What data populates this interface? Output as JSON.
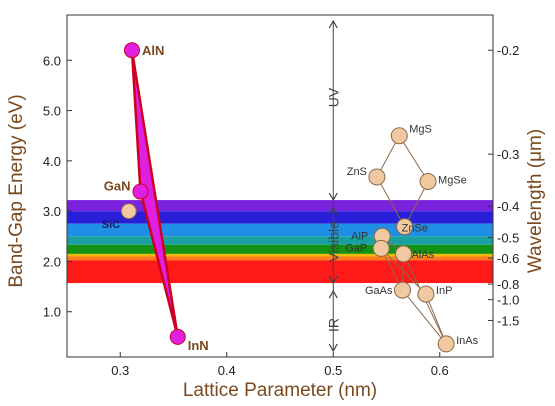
{
  "chart_data": {
    "type": "scatter",
    "title": "",
    "xlabel": "Lattice Parameter  (nm)",
    "ylabel": "Band-Gap Energy (eV)",
    "y2label": "Wavelength (μm)",
    "xlim": [
      0.25,
      0.65
    ],
    "ylim": [
      0.1,
      6.9
    ],
    "x_ticks": [
      0.3,
      0.4,
      0.5,
      0.6
    ],
    "x_tick_labels": [
      "0.3",
      "0.4",
      "0.5",
      "0.6"
    ],
    "y_ticks": [
      1.0,
      2.0,
      3.0,
      4.0,
      5.0,
      6.0
    ],
    "y_tick_labels": [
      "1.0",
      "2.0",
      "3.0",
      "4.0",
      "5.0",
      "6.0"
    ],
    "wavelength_ticks": [
      {
        "um": 0.2,
        "label": "0.2"
      },
      {
        "um": 0.3,
        "label": "0.3"
      },
      {
        "um": 0.4,
        "label": "0.4"
      },
      {
        "um": 0.5,
        "label": "0.5"
      },
      {
        "um": 0.6,
        "label": "0.6"
      },
      {
        "um": 0.8,
        "label": "0.8"
      },
      {
        "um": 1.0,
        "label": "1.0"
      },
      {
        "um": 1.5,
        "label": "1.5"
      }
    ],
    "bands": [
      {
        "y0": 3.0,
        "y1": 3.22,
        "color": "#7a22dd"
      },
      {
        "y0": 2.75,
        "y1": 3.0,
        "color": "#2a1fd8"
      },
      {
        "y0": 2.5,
        "y1": 2.75,
        "color": "#1f8fe6"
      },
      {
        "y0": 2.33,
        "y1": 2.5,
        "color": "#1aa0a0"
      },
      {
        "y0": 2.15,
        "y1": 2.33,
        "color": "#149214"
      },
      {
        "y0": 2.1,
        "y1": 2.15,
        "color": "#f0b90a"
      },
      {
        "y0": 2.02,
        "y1": 2.1,
        "color": "#ff7a1a"
      },
      {
        "y0": 1.57,
        "y1": 2.02,
        "color": "#ff1a1a"
      }
    ],
    "region_labels": [
      "UV",
      "Visible",
      "IR"
    ],
    "region_divider_x": 0.5,
    "nitride_series": {
      "color": "#e020e0",
      "edge_color": "#cc0022",
      "points": [
        {
          "name": "AlN",
          "x": 0.311,
          "y": 6.2
        },
        {
          "name": "GaN",
          "x": 0.319,
          "y": 3.39
        },
        {
          "name": "InN",
          "x": 0.354,
          "y": 0.5
        }
      ]
    },
    "sic_point": {
      "name": "SiC",
      "x": 0.308,
      "y": 3.0
    },
    "compounds_series": {
      "color": "#f0c9a0",
      "edge_color": "#8a6a4a",
      "points": [
        {
          "name": "MgS",
          "x": 0.562,
          "y": 4.5
        },
        {
          "name": "ZnS",
          "x": 0.541,
          "y": 3.68
        },
        {
          "name": "MgSe",
          "x": 0.589,
          "y": 3.59
        },
        {
          "name": "ZnSe",
          "x": 0.567,
          "y": 2.69
        },
        {
          "name": "AlP",
          "x": 0.546,
          "y": 2.5
        },
        {
          "name": "GaP",
          "x": 0.545,
          "y": 2.26
        },
        {
          "name": "AlAs",
          "x": 0.566,
          "y": 2.15
        },
        {
          "name": "GaAs",
          "x": 0.565,
          "y": 1.43
        },
        {
          "name": "InP",
          "x": 0.587,
          "y": 1.35
        },
        {
          "name": "InAs",
          "x": 0.606,
          "y": 0.36
        }
      ],
      "links": [
        [
          "ZnS",
          "MgS"
        ],
        [
          "MgS",
          "MgSe"
        ],
        [
          "MgSe",
          "ZnSe"
        ],
        [
          "ZnSe",
          "ZnS"
        ],
        [
          "GaP",
          "AlP"
        ],
        [
          "AlP",
          "AlAs"
        ],
        [
          "AlAs",
          "GaAs"
        ],
        [
          "GaAs",
          "GaP"
        ],
        [
          "GaP",
          "InP"
        ],
        [
          "GaAs",
          "InAs"
        ],
        [
          "InP",
          "InAs"
        ],
        [
          "AlAs",
          "InAs"
        ]
      ]
    }
  }
}
